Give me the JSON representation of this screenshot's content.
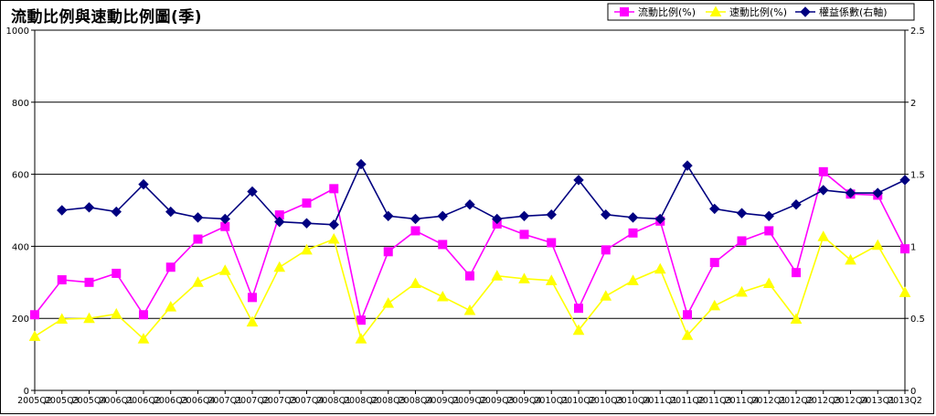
{
  "title": "流動比例與速動比例圖(季)",
  "chart_data": {
    "type": "line",
    "title": "流動比例與速動比例圖(季)",
    "categories": [
      "2005Q2",
      "2005Q3",
      "2005Q4",
      "2006Q1",
      "2006Q2",
      "2006Q3",
      "2006Q4",
      "2007Q1",
      "2007Q2",
      "2007Q3",
      "2007Q4",
      "2008Q1",
      "2008Q2",
      "2008Q3",
      "2008Q4",
      "2009Q1",
      "2009Q2",
      "2009Q3",
      "2009Q4",
      "2010Q1",
      "2010Q2",
      "2010Q3",
      "2010Q4",
      "2011Q1",
      "2011Q2",
      "2011Q3",
      "2011Q4",
      "2012Q1",
      "2012Q2",
      "2012Q3",
      "2012Q4",
      "2013Q1",
      "2013Q2"
    ],
    "ylim_left": [
      0,
      1000
    ],
    "yticks_left": [
      0,
      200,
      400,
      600,
      800,
      1000
    ],
    "ylim_right": [
      0,
      2.5
    ],
    "yticks_right": [
      0,
      0.5,
      1,
      1.5,
      2,
      2.5
    ],
    "grid": true,
    "legend_position": "top-right",
    "series": [
      {
        "name": "流動比例(%)",
        "axis": "left",
        "color": "#ff00ff",
        "marker": "square",
        "values": [
          210,
          307,
          300,
          325,
          210,
          342,
          420,
          455,
          258,
          487,
          520,
          560,
          195,
          385,
          443,
          405,
          318,
          462,
          433,
          410,
          228,
          390,
          437,
          470,
          210,
          355,
          415,
          443,
          327,
          607,
          545,
          542,
          393
        ]
      },
      {
        "name": "速動比例(%)",
        "axis": "left",
        "color": "#ffff00",
        "marker": "triangle",
        "values": [
          150,
          198,
          200,
          212,
          143,
          232,
          300,
          333,
          190,
          342,
          390,
          420,
          143,
          242,
          297,
          260,
          222,
          318,
          310,
          305,
          167,
          262,
          305,
          337,
          153,
          235,
          273,
          297,
          198,
          427,
          362,
          403,
          272
        ]
      },
      {
        "name": "權益係數(右軸)",
        "axis": "right",
        "color": "#000080",
        "marker": "diamond",
        "values": [
          null,
          1.25,
          1.27,
          1.24,
          1.43,
          1.24,
          1.2,
          1.19,
          1.38,
          1.17,
          1.16,
          1.15,
          1.57,
          1.21,
          1.19,
          1.21,
          1.29,
          1.19,
          1.21,
          1.22,
          1.46,
          1.22,
          1.2,
          1.19,
          1.56,
          1.26,
          1.23,
          1.21,
          1.29,
          1.39,
          1.37,
          1.37,
          1.46
        ]
      }
    ]
  }
}
